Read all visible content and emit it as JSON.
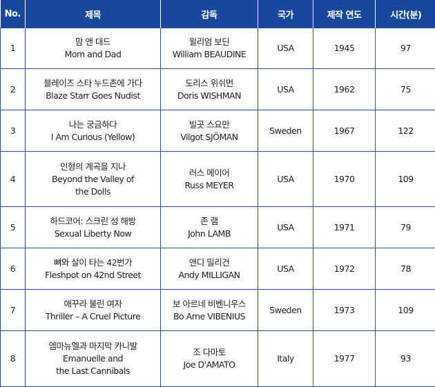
{
  "headers": [
    "No.",
    "제목",
    "감독",
    "국가",
    "제작 연도",
    "시간(분)"
  ],
  "rows": [
    {
      "no": "1",
      "title": [
        "맘 앤 대드",
        "Mom and Dad"
      ],
      "director": [
        "윌리엄 보딘",
        "William BEAUDINE"
      ],
      "country": "USA",
      "year": "1945",
      "minutes": "97"
    },
    {
      "no": "2",
      "title": [
        "블레이즈 스타 누드촌에 가다",
        "Blaze Starr Goes Nudist"
      ],
      "director": [
        "도리스 위쉬먼",
        "Doris WISHMAN"
      ],
      "country": "USA",
      "year": "1962",
      "minutes": "75"
    },
    {
      "no": "3",
      "title": [
        "나는 궁금하다",
        "I Am Curious (Yellow)"
      ],
      "director": [
        "빌곳 스요만",
        "Vilgot SJÖMAN"
      ],
      "country": "Sweden",
      "year": "1967",
      "minutes": "122"
    },
    {
      "no": "4",
      "title": [
        "인형의 계곡을 지나",
        "Beyond the Valley of",
        "the Dolls"
      ],
      "director": [
        "러스 메이어",
        "Russ MEYER"
      ],
      "country": "USA",
      "year": "1970",
      "minutes": "109"
    },
    {
      "no": "5",
      "title": [
        "하드코어: 스크린 성 해방",
        "Sexual Liberty Now"
      ],
      "director": [
        "존 램",
        "John LAMB"
      ],
      "country": "USA",
      "year": "1971",
      "minutes": "79"
    },
    {
      "no": "6",
      "title": [
        "뼈와 살이 타는 42번가",
        "Fleshpot on 42nd Street"
      ],
      "director": [
        "앤디 밀리건",
        "Andy MILLIGAN"
      ],
      "country": "USA",
      "year": "1972",
      "minutes": "78"
    },
    {
      "no": "7",
      "title": [
        "애꾸라 불린 여자",
        "Thriller – A Cruel Picture"
      ],
      "director": [
        "보 아르네 비벤니우스",
        "Bo Arne VIBENIUS"
      ],
      "country": "Sweden",
      "year": "1973",
      "minutes": "109"
    },
    {
      "no": "8",
      "title": [
        "엠마뉴엘과 마지막 카니발",
        "Emanuelle and",
        "the Last Cannibals"
      ],
      "director": [
        "조 다마토",
        "Joe D'AMATO"
      ],
      "country": "Italy",
      "year": "1977",
      "minutes": "93"
    }
  ],
  "colors": {
    "header_bg": "#18479b",
    "border": "#2850a0"
  }
}
